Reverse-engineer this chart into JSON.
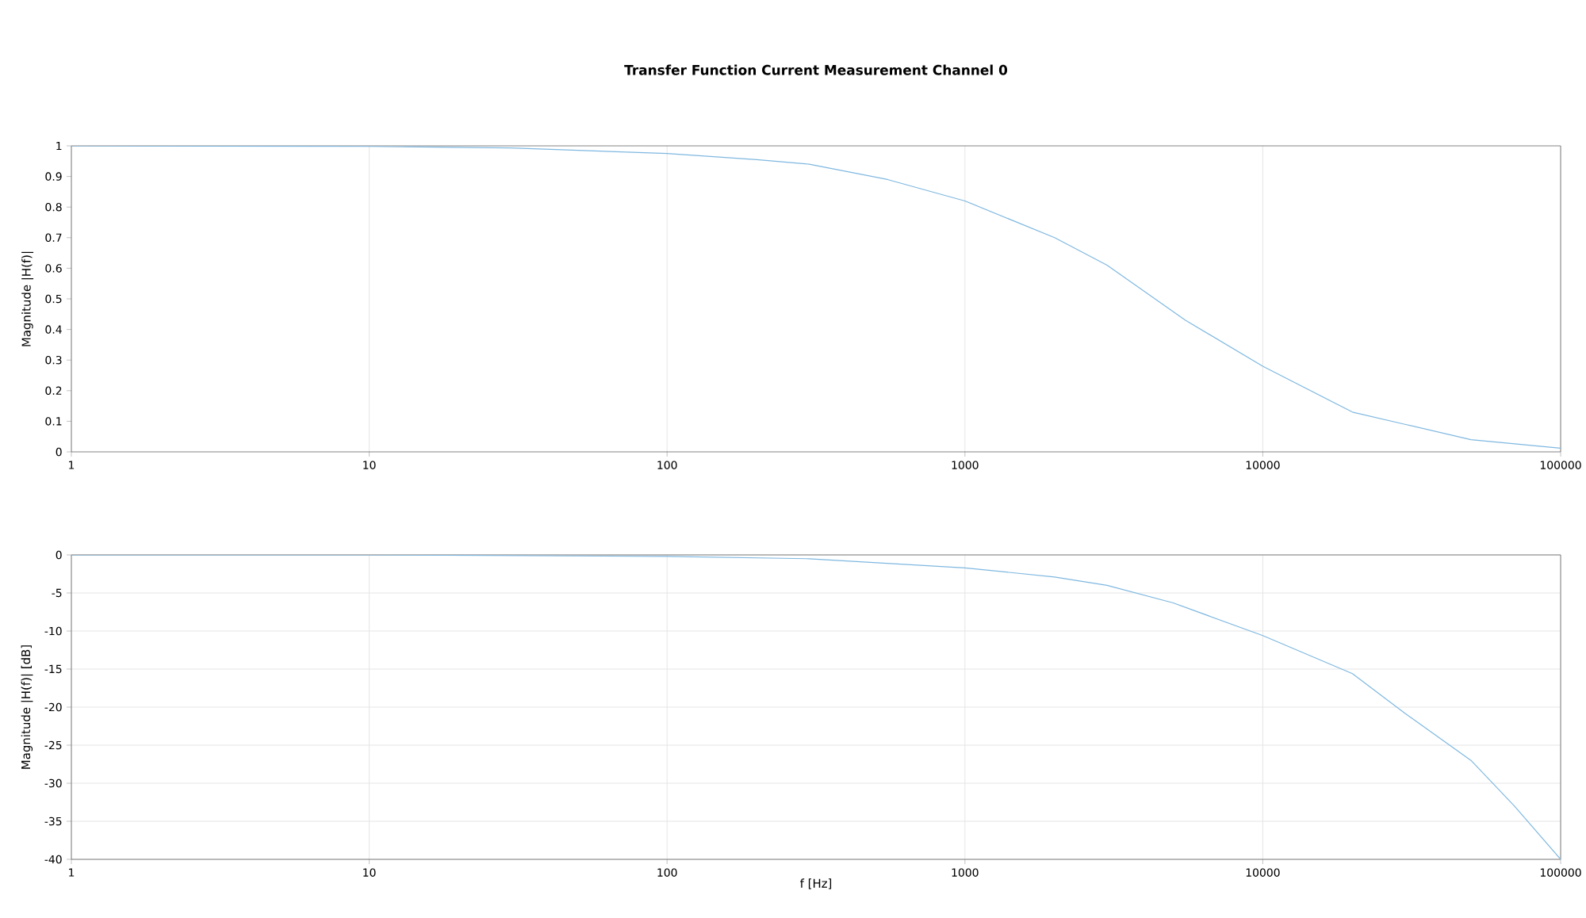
{
  "chart_data": [
    {
      "type": "line",
      "title": "Transfer Function Current Measurement Channel 0",
      "ylabel": "Magnitude |H(f)|",
      "log": "x",
      "grid": "x",
      "xlim": [
        1,
        100000
      ],
      "xticks": [
        1,
        10,
        100,
        1000,
        10000,
        100000
      ],
      "ylim": [
        0,
        1
      ],
      "yticks": [
        0,
        0.1,
        0.2,
        0.3,
        0.4,
        0.5,
        0.6,
        0.7,
        0.8,
        0.9,
        1
      ],
      "series": [
        {
          "color": "#7fb8e0",
          "x": [
            1,
            10,
            30,
            100,
            200,
            300,
            550,
            1000,
            2000,
            3000,
            5500,
            10000,
            20000,
            30000,
            50000,
            100000
          ],
          "values": [
            1,
            0.998,
            0.993,
            0.975,
            0.955,
            0.94,
            0.89,
            0.82,
            0.7,
            0.61,
            0.43,
            0.28,
            0.13,
            0.09,
            0.04,
            0.012
          ]
        }
      ]
    },
    {
      "type": "line",
      "xlabel": "f [Hz]",
      "ylabel": "Magnitude |H(f)| [dB]",
      "log": "x",
      "grid": true,
      "xlim": [
        1,
        100000
      ],
      "xticks": [
        1,
        10,
        100,
        1000,
        10000,
        100000
      ],
      "ylim": [
        -40,
        0
      ],
      "yticks": [
        -40,
        -35,
        -30,
        -25,
        -20,
        -15,
        -10,
        -5,
        0
      ],
      "series": [
        {
          "color": "#7fb8e0",
          "x": [
            1,
            10,
            100,
            300,
            1000,
            2000,
            3000,
            5000,
            10000,
            20000,
            30000,
            50000,
            70000,
            100000
          ],
          "values": [
            0,
            0,
            -0.2,
            -0.5,
            -1.7,
            -2.9,
            -4.0,
            -6.3,
            -10.6,
            -15.6,
            -20.8,
            -27,
            -33,
            -40
          ]
        }
      ]
    }
  ]
}
